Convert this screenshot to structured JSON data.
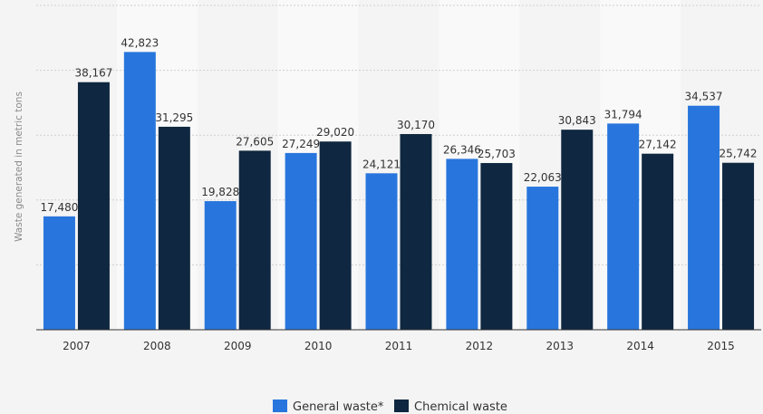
{
  "chart_data": {
    "type": "bar",
    "title": "",
    "xlabel": "",
    "ylabel": "Waste generated in metric tons",
    "categories": [
      "2007",
      "2008",
      "2009",
      "2010",
      "2011",
      "2012",
      "2013",
      "2014",
      "2015"
    ],
    "series": [
      {
        "name": "General waste*",
        "color": "#2876dd",
        "values": [
          17480,
          42823,
          19828,
          27249,
          24121,
          26346,
          22063,
          31794,
          34537
        ],
        "labels": [
          "17,480",
          "42,823",
          "19,828",
          "27,249",
          "24,121",
          "26,346",
          "22,063",
          "31,794",
          "34,537"
        ]
      },
      {
        "name": "Chemical waste",
        "color": "#0f2740",
        "values": [
          38167,
          31295,
          27605,
          29020,
          30170,
          25703,
          30843,
          27142,
          25742
        ],
        "labels": [
          "38,167",
          "31,295",
          "27,605",
          "29,020",
          "30,170",
          "25,703",
          "30,843",
          "27,142",
          "25,742"
        ]
      }
    ],
    "ylim": [
      0,
      50000
    ],
    "grid": true,
    "legend_position": "bottom-center"
  }
}
